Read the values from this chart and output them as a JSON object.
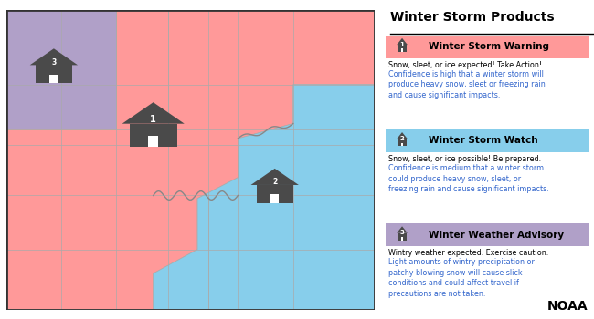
{
  "title": "Winter Storm Products",
  "bg_color": "#ffffff",
  "warning_color": "#FF9999",
  "watch_color": "#87CEEB",
  "advisory_color": "#B0A0C8",
  "house_color": "#4a4a4a",
  "blue_text_color": "#3366CC",
  "black_text_color": "#000000",
  "items": [
    {
      "number": "1",
      "label": "Winter Storm Warning",
      "header_color": "#FF9999",
      "line1_black": "Snow, sleet, or ice expected! Take Action!",
      "line2_blue": "Confidence is high that a winter storm will\nproduce heavy snow, sleet or freezing rain\nand cause significant impacts."
    },
    {
      "number": "2",
      "label": "Winter Storm Watch",
      "header_color": "#87CEEB",
      "line1_black": "Snow, sleet, or ice possible! Be prepared.",
      "line2_blue": "Confidence is medium that a winter storm\ncould produce heavy snow, sleet, or\nfreezing rain and cause significant impacts."
    },
    {
      "number": "3",
      "label": "Winter Weather Advisory",
      "header_color": "#B0A0C8",
      "line1_black": "Wintry weather expected. Exercise caution.",
      "line2_blue": "Light amounts of wintry precipitation or\npatchy blowing snow will cause slick\nconditions and could affect travel if\nprecautions are not taken."
    }
  ],
  "noaa_label": "NOAA"
}
